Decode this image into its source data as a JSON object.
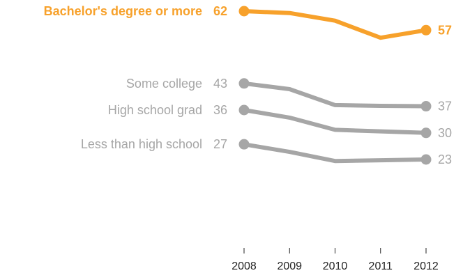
{
  "chart_data": {
    "type": "line",
    "title": "",
    "xlabel": "",
    "ylabel": "",
    "x": [
      "2008",
      "2009",
      "2010",
      "2011",
      "2012"
    ],
    "ylim": [
      0,
      70
    ],
    "grid": false,
    "legend": "none",
    "series": [
      {
        "name": "Bachelor's degree or more",
        "values": [
          62,
          61.5,
          59.5,
          55,
          57
        ],
        "start_label": "62",
        "end_label": "57",
        "color": "#f7a12b",
        "emphasis": true
      },
      {
        "name": "Some college",
        "values": [
          43,
          41.5,
          37.3,
          37.1,
          37
        ],
        "start_label": "43",
        "end_label": "37",
        "color": "#a6a6a6",
        "emphasis": false
      },
      {
        "name": "High school grad",
        "values": [
          36,
          34,
          30.8,
          30.4,
          30
        ],
        "start_label": "36",
        "end_label": "30",
        "color": "#a6a6a6",
        "emphasis": false
      },
      {
        "name": "Less than high school",
        "values": [
          27,
          25,
          22.6,
          22.8,
          23
        ],
        "start_label": "27",
        "end_label": "23",
        "color": "#a6a6a6",
        "emphasis": false
      }
    ],
    "label_colors": {
      "emphasis": "#f7a12b",
      "muted": "#a6a6a6",
      "axis": "#222222"
    }
  }
}
